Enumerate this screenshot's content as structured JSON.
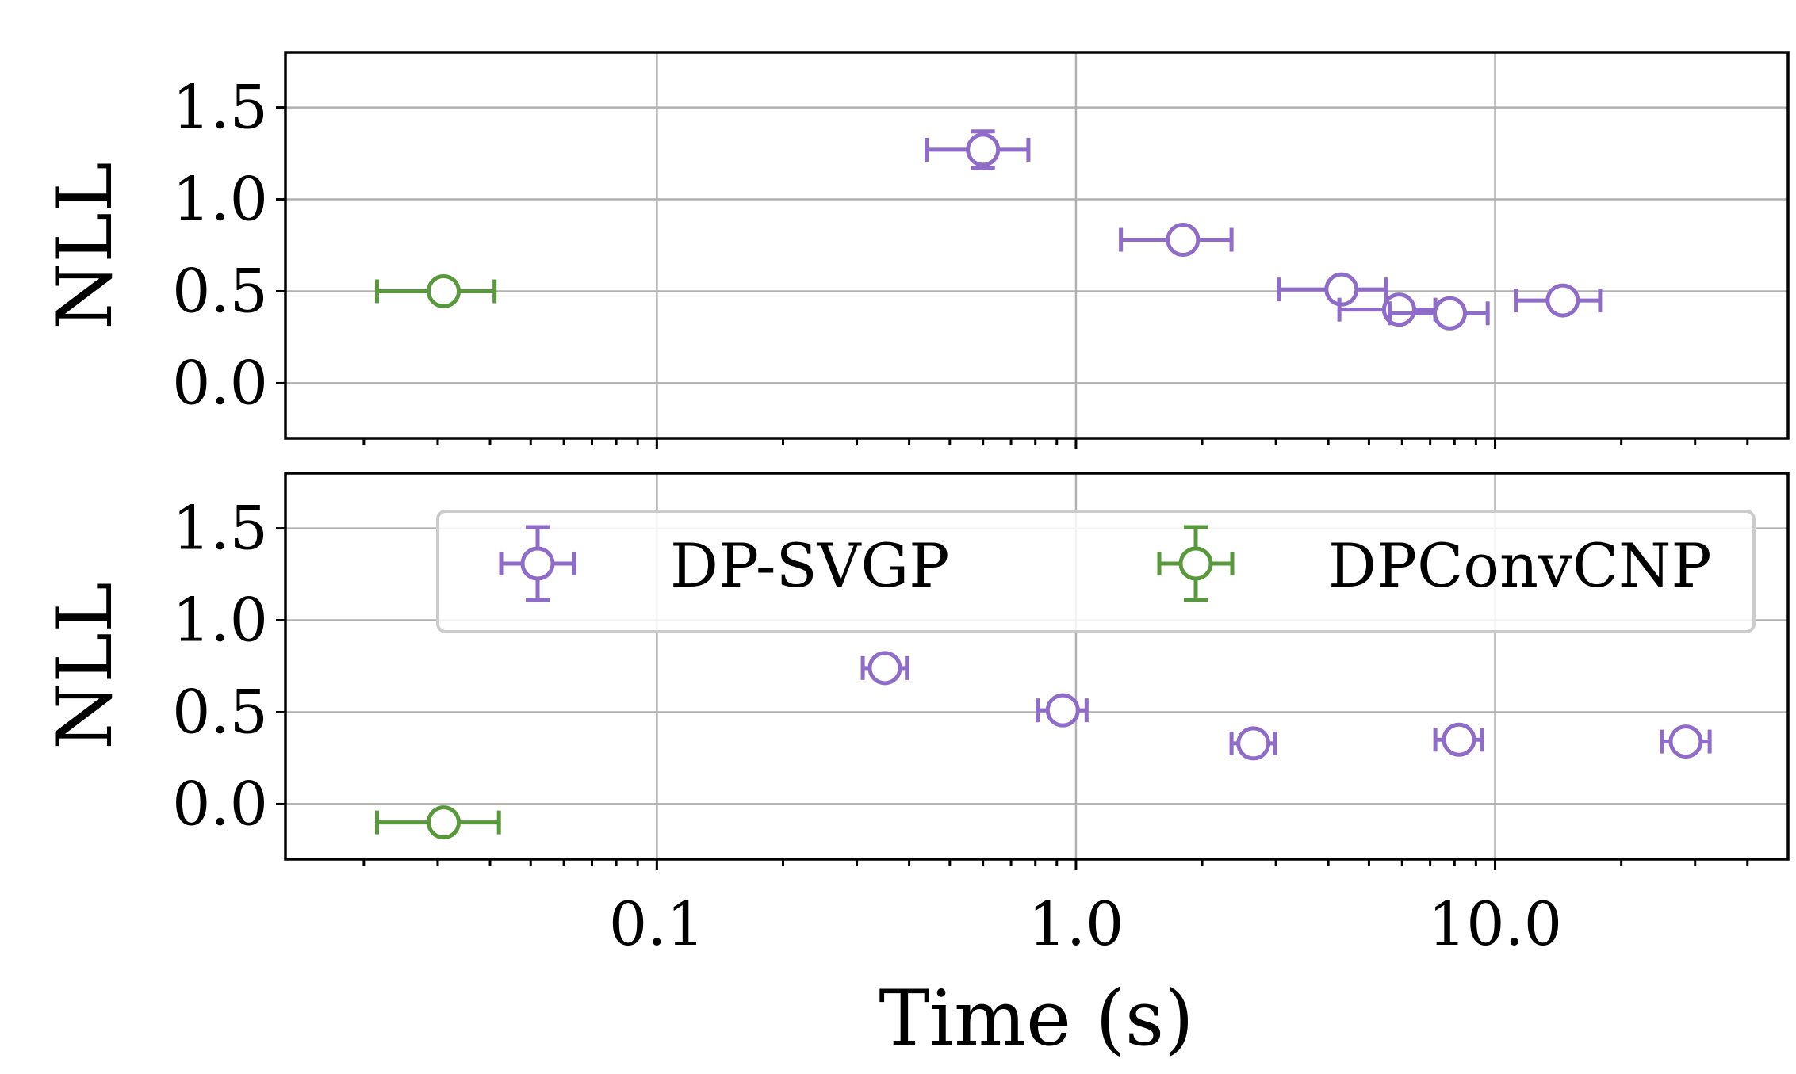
{
  "chart_data": {
    "type": "scatter",
    "xlabel": "Time (s)",
    "x_scale": "log",
    "xlim": [
      0.013,
      50
    ],
    "x_ticks": [
      0.1,
      1.0,
      10.0
    ],
    "x_tick_labels": [
      "0.1",
      "1.0",
      "10.0"
    ],
    "colors": {
      "DP-SVGP": "#8e6cc8",
      "DPConvCNP": "#57993b"
    },
    "legend": {
      "location": "top-center (lower panel)",
      "entries": [
        {
          "label": "DP-SVGP",
          "series": "DP-SVGP"
        },
        {
          "label": "DPConvCNP",
          "series": "DPConvCNP"
        }
      ]
    },
    "panels": [
      {
        "ylabel": "NLL",
        "ylim": [
          -0.3,
          1.8
        ],
        "y_ticks": [
          0.0,
          0.5,
          1.0,
          1.5
        ],
        "y_tick_labels": [
          "0.0",
          "0.5",
          "1.0",
          "1.5"
        ],
        "grid": true,
        "series": [
          {
            "name": "DP-SVGP",
            "points": [
              {
                "x": 0.6,
                "x_low": 0.44,
                "x_high": 0.77,
                "y": 1.27,
                "y_err": 0.1
              },
              {
                "x": 1.8,
                "x_low": 1.28,
                "x_high": 2.35,
                "y": 0.78,
                "y_err": 0.03
              },
              {
                "x": 4.3,
                "x_low": 3.05,
                "x_high": 5.5,
                "y": 0.51,
                "y_err": 0.03
              },
              {
                "x": 5.9,
                "x_low": 4.25,
                "x_high": 7.2,
                "y": 0.4,
                "y_err": 0.03
              },
              {
                "x": 7.8,
                "x_low": 5.6,
                "x_high": 9.6,
                "y": 0.38,
                "y_err": 0.03
              },
              {
                "x": 14.5,
                "x_low": 11.2,
                "x_high": 17.8,
                "y": 0.45,
                "y_err": 0.05
              }
            ]
          },
          {
            "name": "DPConvCNP",
            "points": [
              {
                "x": 0.031,
                "x_low": 0.0215,
                "x_high": 0.041,
                "y": 0.5,
                "y_err": 0.04
              }
            ]
          }
        ]
      },
      {
        "ylabel": "NLL",
        "ylim": [
          -0.3,
          1.8
        ],
        "y_ticks": [
          0.0,
          0.5,
          1.0,
          1.5
        ],
        "y_tick_labels": [
          "0.0",
          "0.5",
          "1.0",
          "1.5"
        ],
        "grid": true,
        "series": [
          {
            "name": "DP-SVGP",
            "points": [
              {
                "x": 0.35,
                "x_low": 0.31,
                "x_high": 0.395,
                "y": 0.74,
                "y_err": 0.03
              },
              {
                "x": 0.93,
                "x_low": 0.81,
                "x_high": 1.06,
                "y": 0.51,
                "y_err": 0.03
              },
              {
                "x": 2.65,
                "x_low": 2.35,
                "x_high": 2.98,
                "y": 0.33,
                "y_err": 0.03
              },
              {
                "x": 8.2,
                "x_low": 7.2,
                "x_high": 9.3,
                "y": 0.35,
                "y_err": 0.03
              },
              {
                "x": 28.5,
                "x_low": 25.0,
                "x_high": 32.5,
                "y": 0.34,
                "y_err": 0.03
              }
            ]
          },
          {
            "name": "DPConvCNP",
            "points": [
              {
                "x": 0.031,
                "x_low": 0.0215,
                "x_high": 0.042,
                "y": -0.1,
                "y_err": 0.03
              }
            ]
          }
        ]
      }
    ]
  }
}
